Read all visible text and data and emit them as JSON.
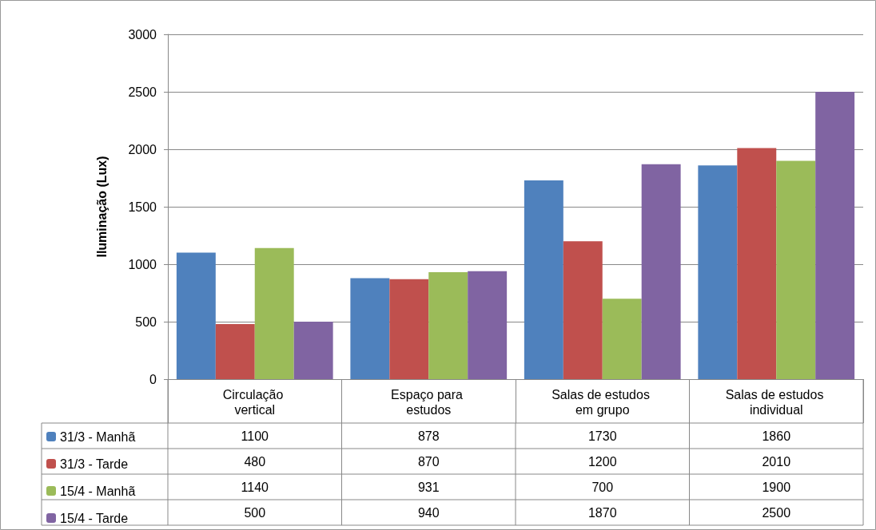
{
  "chart_data": {
    "type": "bar",
    "ylabel": "Iluminação (Lux)",
    "categories": [
      "Circulação vertical",
      "Espaço para estudos",
      "Salas de estudos em grupo",
      "Salas de estudos individual"
    ],
    "series": [
      {
        "name": "31/3 - Manhã",
        "color": "#4f81bd",
        "values": [
          1100,
          878,
          1730,
          1860
        ]
      },
      {
        "name": "31/3 - Tarde",
        "color": "#c0504d",
        "values": [
          480,
          870,
          1200,
          2010
        ]
      },
      {
        "name": "15/4 - Manhã",
        "color": "#9bbb59",
        "values": [
          1140,
          931,
          700,
          1900
        ]
      },
      {
        "name": "15/4 - Tarde",
        "color": "#8064a2",
        "values": [
          500,
          940,
          1870,
          2500
        ]
      }
    ],
    "ylim": [
      0,
      3000
    ],
    "yticks": [
      0,
      500,
      1000,
      1500,
      2000,
      2500,
      3000
    ],
    "grid": "y",
    "legend": "bottom left",
    "data_labels": true
  }
}
